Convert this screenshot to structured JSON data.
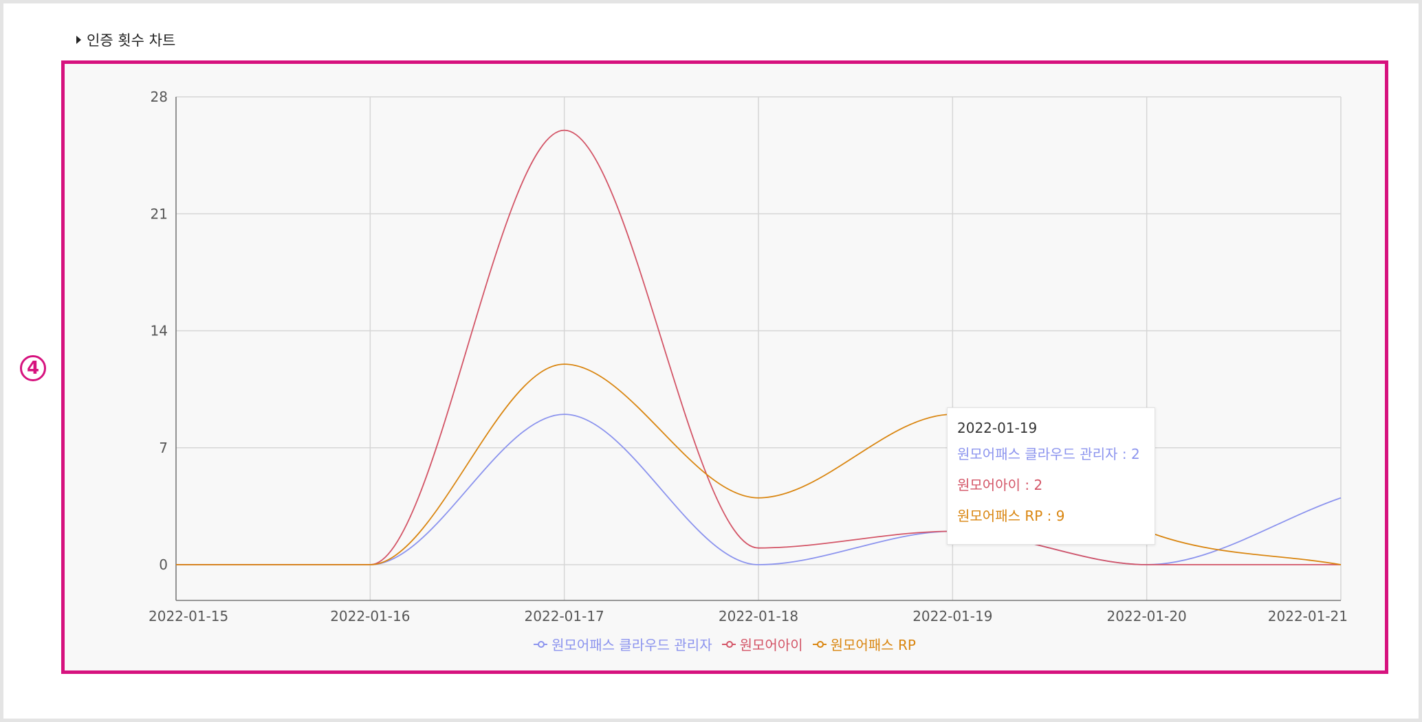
{
  "section": {
    "title": "인증 횟수 차트"
  },
  "marker": {
    "label": "4"
  },
  "chart_data": {
    "type": "line",
    "x": [
      "2022-01-15",
      "2022-01-16",
      "2022-01-17",
      "2022-01-18",
      "2022-01-19",
      "2022-01-20",
      "2022-01-21"
    ],
    "ylim": [
      0,
      28
    ],
    "yticks": [
      "0",
      "7",
      "14",
      "21",
      "28"
    ],
    "grid": true,
    "legend": "bottom",
    "series": [
      {
        "name": "원모어패스 클라우드 관리자",
        "color": "#8b93ee",
        "values": [
          0,
          0,
          9,
          0,
          2,
          0,
          4
        ]
      },
      {
        "name": "원모어아이",
        "color": "#d35466",
        "values": [
          0,
          0,
          26,
          1,
          2,
          0,
          0
        ]
      },
      {
        "name": "원모어패스 RP",
        "color": "#d9850f",
        "values": [
          0,
          0,
          12,
          4,
          9,
          2,
          0
        ]
      }
    ],
    "tooltip": {
      "date": "2022-01-19",
      "lines": [
        "원모어패스 클라우드 관리자 : 2",
        "원모어아이 : 2",
        "원모어패스 RP : 9"
      ]
    }
  }
}
